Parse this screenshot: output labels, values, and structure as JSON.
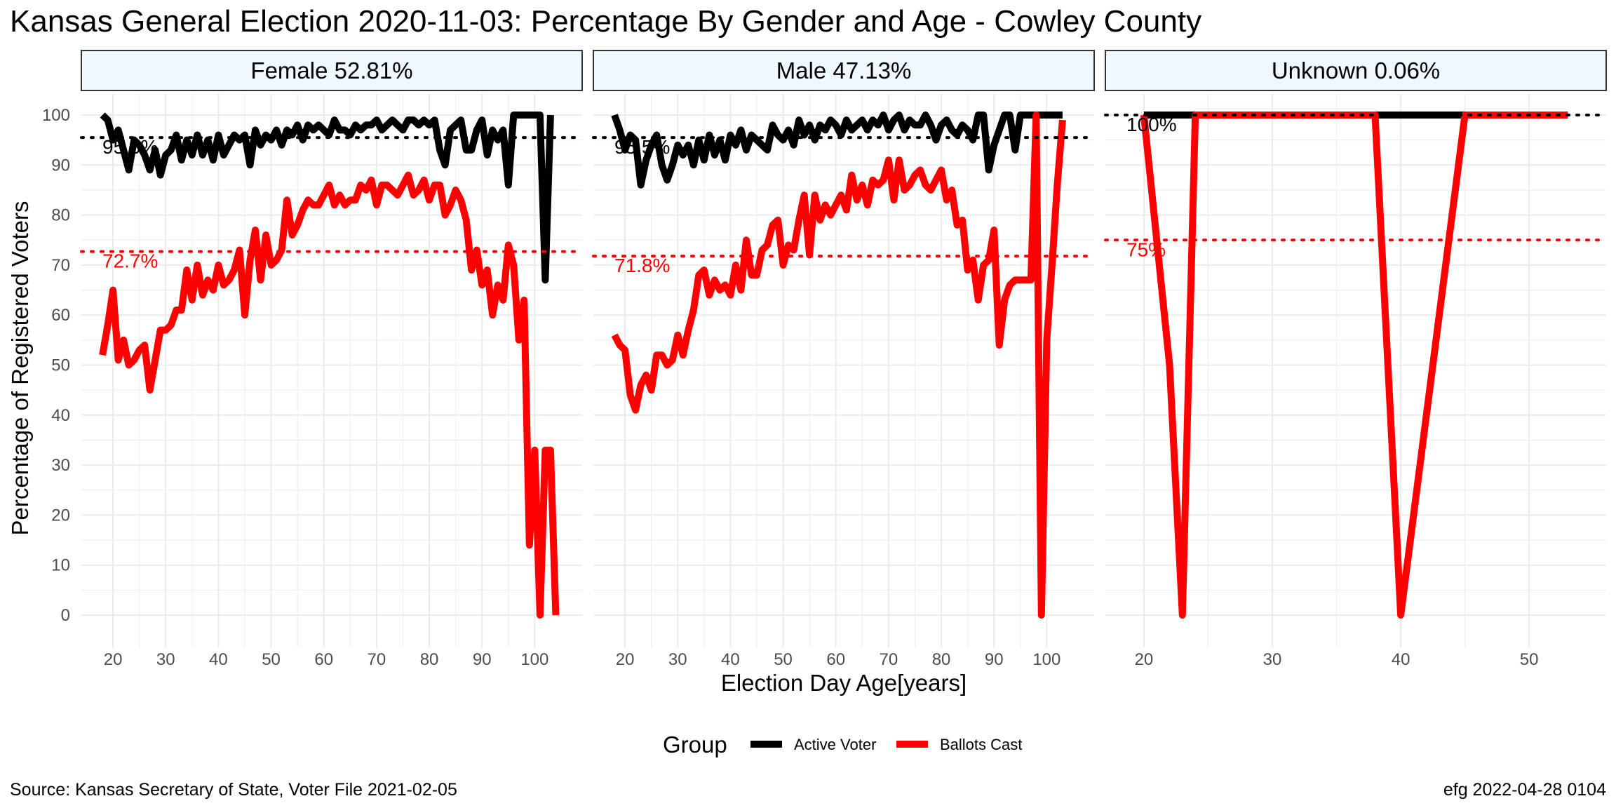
{
  "title": "Kansas General Election 2020-11-03:  Percentage By Gender and Age - Cowley County",
  "caption_left": "Source:  Kansas Secretary of State, Voter File  2021-02-05",
  "caption_right": "efg 2022-04-28 0104",
  "legend": {
    "title": "Group",
    "items": [
      {
        "label": "Active Voter",
        "color": "#000000"
      },
      {
        "label": "Ballots Cast",
        "color": "#ff0000"
      }
    ]
  },
  "colors": {
    "active": "#000000",
    "ballots": "#ff0000",
    "strip_fill": "#f0f8ff",
    "grid": "#ebebeb"
  },
  "chart_data": {
    "type": "line",
    "xlabel": "Election Day Age[years]",
    "ylabel": "Percentage of Registered Voters",
    "ylim": [
      0,
      100
    ],
    "yticks": [
      0,
      10,
      20,
      30,
      40,
      50,
      60,
      70,
      80,
      90,
      100
    ],
    "grid": true,
    "legend_position": "bottom",
    "panels": [
      {
        "strip": "Female 52.81%",
        "xlim": [
          14,
          109
        ],
        "xticks": [
          20,
          30,
          40,
          50,
          60,
          70,
          80,
          90,
          100
        ],
        "avg_active": {
          "value": 95.5,
          "label": "95.5%"
        },
        "avg_ballots": {
          "value": 72.7,
          "label": "72.7%"
        },
        "series": [
          {
            "key": "active",
            "name": "Active Voter",
            "x": [
              18,
              19,
              20,
              21,
              22,
              23,
              24,
              25,
              26,
              27,
              28,
              29,
              30,
              31,
              32,
              33,
              34,
              35,
              36,
              37,
              38,
              39,
              40,
              41,
              42,
              43,
              44,
              45,
              46,
              47,
              48,
              49,
              50,
              51,
              52,
              53,
              54,
              55,
              56,
              57,
              58,
              59,
              60,
              61,
              62,
              63,
              64,
              65,
              66,
              67,
              68,
              69,
              70,
              71,
              72,
              73,
              74,
              75,
              76,
              77,
              78,
              79,
              80,
              81,
              82,
              83,
              84,
              85,
              86,
              87,
              88,
              89,
              90,
              91,
              92,
              93,
              94,
              95,
              96,
              97,
              98,
              99,
              100,
              101,
              102,
              103
            ],
            "y": [
              100,
              99,
              95,
              97,
              93,
              89,
              95,
              94,
              92,
              89,
              93,
              88,
              92,
              93,
              96,
              91,
              95,
              92,
              96,
              92,
              95,
              91,
              96,
              92,
              94,
              96,
              95,
              96,
              90,
              97,
              94,
              96,
              95,
              97,
              94,
              97,
              96,
              98,
              95,
              98,
              97,
              98,
              97,
              96,
              99,
              97,
              97,
              96,
              98,
              97,
              98,
              98,
              99,
              97,
              98,
              99,
              98,
              97,
              99,
              99,
              98,
              99,
              98,
              99,
              93,
              90,
              97,
              98,
              99,
              93,
              93,
              97,
              99,
              92,
              97,
              95,
              97,
              86,
              100,
              100,
              100,
              100,
              100,
              100,
              67,
              100
            ]
          },
          {
            "key": "ballots",
            "name": "Ballots Cast",
            "x": [
              18,
              19,
              20,
              21,
              22,
              23,
              24,
              25,
              26,
              27,
              28,
              29,
              30,
              31,
              32,
              33,
              34,
              35,
              36,
              37,
              38,
              39,
              40,
              41,
              42,
              43,
              44,
              45,
              46,
              47,
              48,
              49,
              50,
              51,
              52,
              53,
              54,
              55,
              56,
              57,
              58,
              59,
              60,
              61,
              62,
              63,
              64,
              65,
              66,
              67,
              68,
              69,
              70,
              71,
              72,
              73,
              74,
              75,
              76,
              77,
              78,
              79,
              80,
              81,
              82,
              83,
              84,
              85,
              86,
              87,
              88,
              89,
              90,
              91,
              92,
              93,
              94,
              95,
              96,
              97,
              98,
              99,
              100,
              101,
              102,
              103,
              104
            ],
            "y": [
              52,
              58,
              65,
              51,
              55,
              50,
              51,
              53,
              54,
              45,
              51,
              57,
              57,
              58,
              61,
              61,
              69,
              63,
              70,
              64,
              67,
              65,
              70,
              66,
              67,
              69,
              73,
              60,
              71,
              77,
              67,
              76,
              70,
              71,
              73,
              83,
              76,
              78,
              81,
              83,
              82,
              82,
              84,
              86,
              82,
              84,
              82,
              83,
              83,
              86,
              85,
              87,
              82,
              86,
              86,
              85,
              84,
              86,
              88,
              84,
              85,
              87,
              83,
              86,
              86,
              80,
              82,
              85,
              83,
              79,
              69,
              73,
              66,
              69,
              60,
              66,
              63,
              74,
              70,
              55,
              63,
              14,
              33,
              0,
              33,
              33,
              0
            ]
          }
        ]
      },
      {
        "strip": "Male 47.13%",
        "xlim": [
          14,
          109
        ],
        "xticks": [
          20,
          30,
          40,
          50,
          60,
          70,
          80,
          90,
          100
        ],
        "avg_active": {
          "value": 95.5,
          "label": "95.5%"
        },
        "avg_ballots": {
          "value": 71.8,
          "label": "71.8%"
        },
        "series": [
          {
            "key": "active",
            "name": "Active Voter",
            "x": [
              18,
              19,
              20,
              21,
              22,
              23,
              24,
              25,
              26,
              27,
              28,
              29,
              30,
              31,
              32,
              33,
              34,
              35,
              36,
              37,
              38,
              39,
              40,
              41,
              42,
              43,
              44,
              45,
              46,
              47,
              48,
              49,
              50,
              51,
              52,
              53,
              54,
              55,
              56,
              57,
              58,
              59,
              60,
              61,
              62,
              63,
              64,
              65,
              66,
              67,
              68,
              69,
              70,
              71,
              72,
              73,
              74,
              75,
              76,
              77,
              78,
              79,
              80,
              81,
              82,
              83,
              84,
              85,
              86,
              87,
              88,
              89,
              90,
              91,
              92,
              93,
              94,
              95,
              96,
              97,
              98,
              99,
              100,
              101,
              102,
              103
            ],
            "y": [
              100,
              97,
              93,
              96,
              95,
              86,
              91,
              94,
              96,
              90,
              87,
              90,
              94,
              92,
              94,
              90,
              95,
              91,
              96,
              92,
              95,
              91,
              96,
              94,
              97,
              93,
              96,
              95,
              94,
              93,
              98,
              96,
              95,
              97,
              94,
              99,
              96,
              98,
              95,
              98,
              97,
              99,
              98,
              96,
              99,
              97,
              98,
              99,
              97,
              99,
              98,
              100,
              97,
              99,
              100,
              97,
              99,
              98,
              98,
              100,
              98,
              95,
              98,
              99,
              97,
              96,
              98,
              97,
              95,
              100,
              100,
              89,
              94,
              97,
              100,
              100,
              93,
              100,
              100,
              100,
              100,
              100,
              100,
              100,
              100,
              100
            ]
          },
          {
            "key": "ballots",
            "name": "Ballots Cast",
            "x": [
              18,
              19,
              20,
              21,
              22,
              23,
              24,
              25,
              26,
              27,
              28,
              29,
              30,
              31,
              32,
              33,
              34,
              35,
              36,
              37,
              38,
              39,
              40,
              41,
              42,
              43,
              44,
              45,
              46,
              47,
              48,
              49,
              50,
              51,
              52,
              53,
              54,
              55,
              56,
              57,
              58,
              59,
              60,
              61,
              62,
              63,
              64,
              65,
              66,
              67,
              68,
              69,
              70,
              71,
              72,
              73,
              74,
              75,
              76,
              77,
              78,
              79,
              80,
              81,
              82,
              83,
              84,
              85,
              86,
              87,
              88,
              89,
              90,
              91,
              92,
              93,
              94,
              95,
              96,
              97,
              98,
              99,
              100,
              101,
              102,
              103
            ],
            "y": [
              56,
              54,
              53,
              44,
              41,
              46,
              48,
              45,
              52,
              52,
              50,
              51,
              56,
              52,
              57,
              61,
              68,
              69,
              64,
              67,
              65,
              66,
              64,
              70,
              65,
              75,
              68,
              68,
              73,
              74,
              78,
              79,
              70,
              74,
              73,
              79,
              84,
              72,
              84,
              79,
              82,
              80,
              82,
              84,
              81,
              88,
              83,
              86,
              82,
              87,
              86,
              87,
              91,
              83,
              91,
              85,
              86,
              88,
              89,
              86,
              85,
              87,
              89,
              83,
              85,
              78,
              79,
              69,
              71,
              63,
              70,
              71,
              77,
              54,
              63,
              66,
              67,
              67,
              67,
              67,
              100,
              0,
              55,
              70,
              86,
              99
            ]
          }
        ]
      },
      {
        "strip": "Unknown 0.06%",
        "xlim": [
          17,
          56
        ],
        "xticks": [
          20,
          30,
          40,
          50
        ],
        "avg_active": {
          "value": 100,
          "label": "100%"
        },
        "avg_ballots": {
          "value": 75,
          "label": "75%"
        },
        "series": [
          {
            "key": "active",
            "name": "Active Voter",
            "x": [
              20,
              53
            ],
            "y": [
              100,
              100
            ]
          },
          {
            "key": "ballots",
            "name": "Ballots Cast",
            "x": [
              20,
              22,
              23,
              24,
              38,
              40,
              45,
              53
            ],
            "y": [
              100,
              50,
              0,
              100,
              100,
              0,
              100,
              100
            ]
          }
        ]
      }
    ]
  }
}
